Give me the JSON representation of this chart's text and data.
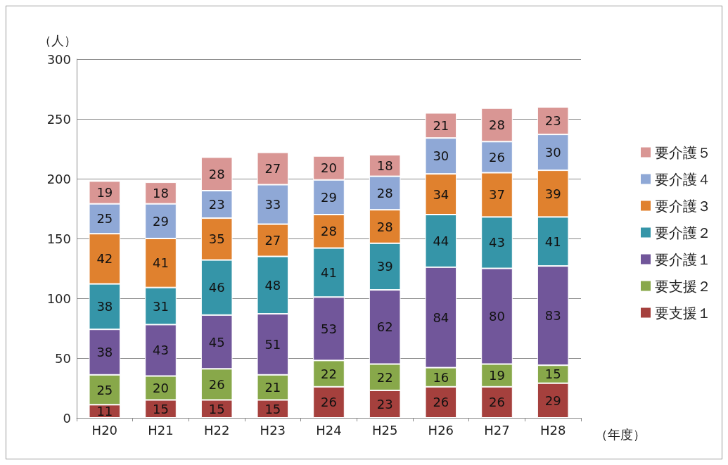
{
  "chart_data": {
    "type": "bar",
    "stacked": true,
    "ylabel": "（人）",
    "xlabel": "（年度）",
    "categories": [
      "H20",
      "H21",
      "H22",
      "H23",
      "H24",
      "H25",
      "H26",
      "H27",
      "H28"
    ],
    "series": [
      {
        "name": "要支援１",
        "color": "#a5403d",
        "values": [
          11,
          15,
          15,
          15,
          26,
          23,
          26,
          26,
          29
        ]
      },
      {
        "name": "要支援２",
        "color": "#88a84a",
        "values": [
          25,
          20,
          26,
          21,
          22,
          22,
          16,
          19,
          15
        ]
      },
      {
        "name": "要介護１",
        "color": "#71569a",
        "values": [
          38,
          43,
          45,
          51,
          53,
          62,
          84,
          80,
          83
        ]
      },
      {
        "name": "要介護２",
        "color": "#3595a8",
        "values": [
          38,
          31,
          46,
          48,
          41,
          39,
          44,
          43,
          41
        ]
      },
      {
        "name": "要介護３",
        "color": "#e0812e",
        "values": [
          42,
          41,
          35,
          27,
          28,
          28,
          34,
          37,
          39
        ]
      },
      {
        "name": "要介護４",
        "color": "#8fa8d6",
        "values": [
          25,
          29,
          23,
          33,
          29,
          28,
          30,
          26,
          30
        ]
      },
      {
        "name": "要介護５",
        "color": "#d99694",
        "values": [
          19,
          18,
          28,
          27,
          20,
          18,
          21,
          28,
          23
        ]
      }
    ],
    "ylim": [
      0,
      300
    ],
    "yticks": [
      0,
      50,
      100,
      150,
      200,
      250,
      300
    ],
    "grid": "y",
    "legend": "right",
    "data_labels": true
  }
}
